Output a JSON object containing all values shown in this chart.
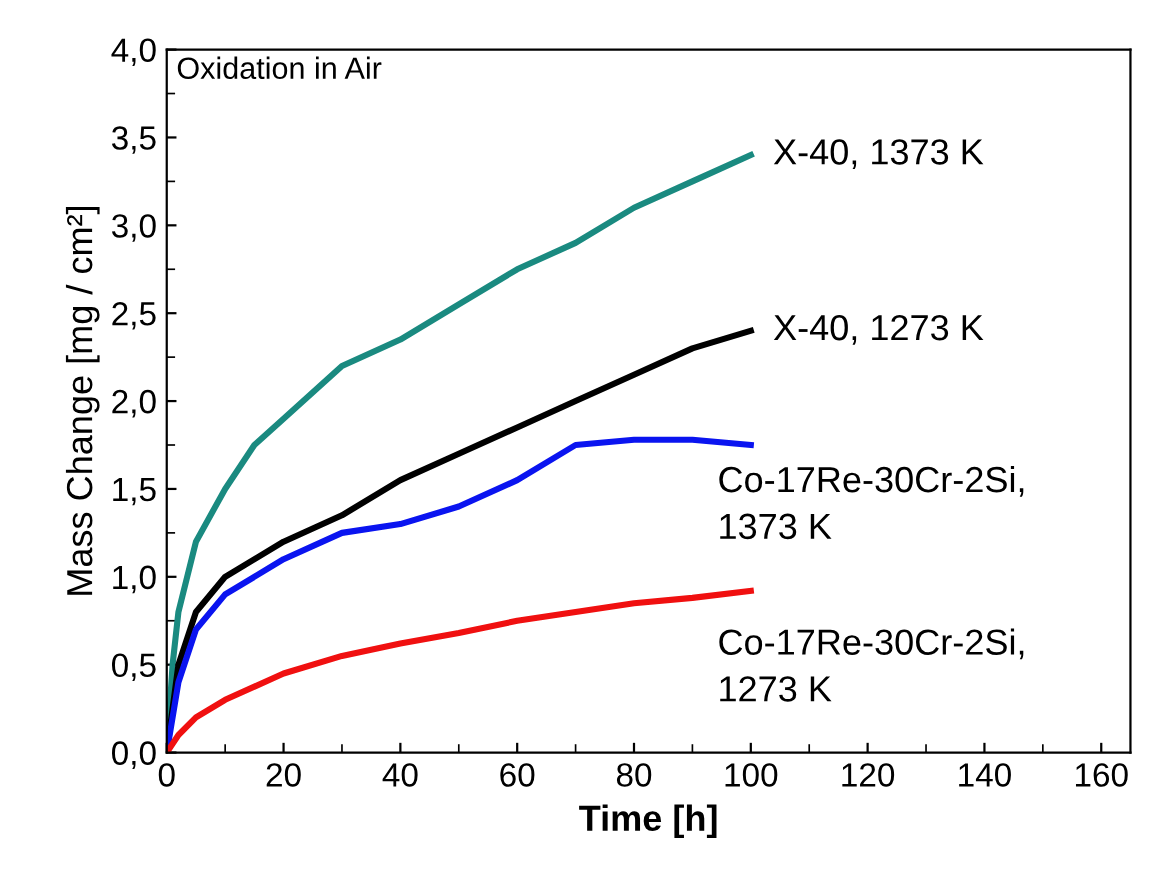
{
  "chart_data": {
    "type": "line",
    "xlabel": "Time [h]",
    "ylabel": "Mass Change [mg / cm²]",
    "annotations": [
      "Oxidation in Air"
    ],
    "xlim": [
      0,
      165
    ],
    "xticks": [
      0,
      20,
      40,
      60,
      80,
      100,
      120,
      140,
      160
    ],
    "ylim": [
      0,
      4.0
    ],
    "yticks": [
      {
        "value": 0,
        "label": "0,0"
      },
      {
        "value": 0.5,
        "label": "0,5"
      },
      {
        "value": 1.0,
        "label": "1,0"
      },
      {
        "value": 1.5,
        "label": "1,5"
      },
      {
        "value": 2.0,
        "label": "2,0"
      },
      {
        "value": 2.5,
        "label": "2,5"
      },
      {
        "value": 3.0,
        "label": "3,0"
      },
      {
        "value": 3.5,
        "label": "3,5"
      },
      {
        "value": 4.0,
        "label": "4,0"
      }
    ],
    "grid": false,
    "legend": false,
    "marker": "none",
    "line_style": "solid",
    "series": [
      {
        "name": "X-40, 1373 K",
        "color": "#1a8a80",
        "x": [
          0,
          1,
          2,
          5,
          10,
          15,
          20,
          30,
          40,
          50,
          60,
          70,
          80,
          90,
          100
        ],
        "values": [
          0,
          0.5,
          0.8,
          1.2,
          1.5,
          1.75,
          1.9,
          2.2,
          2.35,
          2.55,
          2.75,
          2.9,
          3.1,
          3.25,
          3.4
        ]
      },
      {
        "name": "X-40, 1273 K",
        "color": "#000000",
        "x": [
          0,
          2,
          5,
          10,
          20,
          30,
          40,
          50,
          60,
          70,
          80,
          90,
          100
        ],
        "values": [
          0,
          0.5,
          0.8,
          1.0,
          1.2,
          1.35,
          1.55,
          1.7,
          1.85,
          2.0,
          2.15,
          2.3,
          2.4
        ]
      },
      {
        "name": "Co-17Re-30Cr-2Si,\n1373 K",
        "color": "#0a14f0",
        "x": [
          0,
          2,
          5,
          10,
          20,
          30,
          40,
          50,
          60,
          70,
          80,
          90,
          100
        ],
        "values": [
          0,
          0.4,
          0.7,
          0.9,
          1.1,
          1.25,
          1.3,
          1.4,
          1.55,
          1.75,
          1.78,
          1.78,
          1.75
        ]
      },
      {
        "name": "Co-17Re-30Cr-2Si,\n1273 K",
        "color": "#f01010",
        "x": [
          0,
          2,
          5,
          10,
          20,
          30,
          40,
          50,
          60,
          70,
          80,
          90,
          100
        ],
        "values": [
          0,
          0.1,
          0.2,
          0.3,
          0.45,
          0.55,
          0.62,
          0.68,
          0.75,
          0.8,
          0.85,
          0.88,
          0.92
        ]
      }
    ]
  }
}
